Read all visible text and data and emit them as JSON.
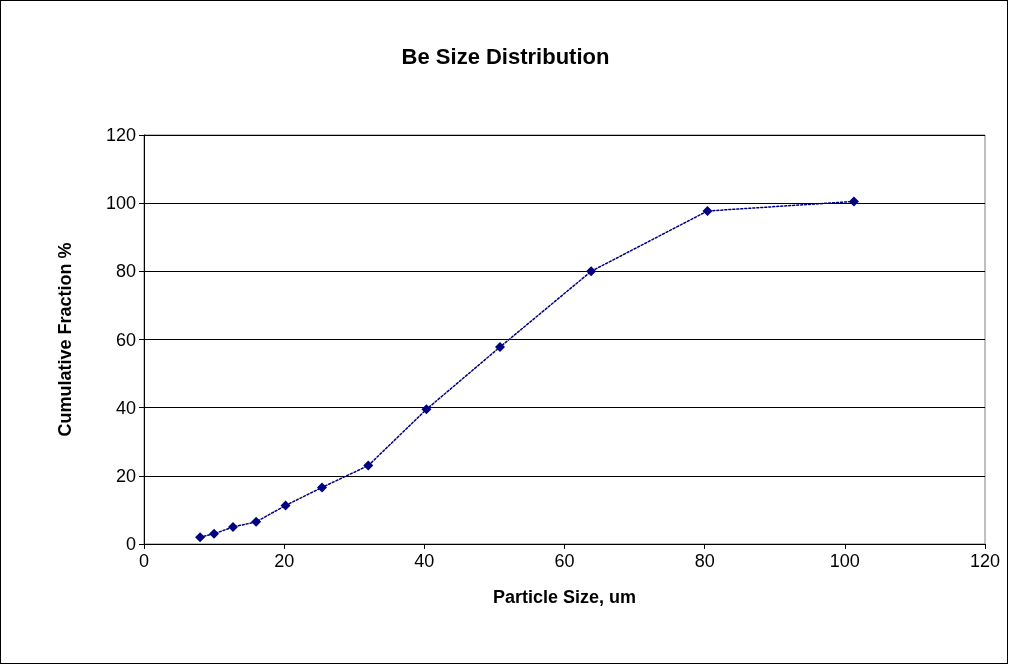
{
  "chart_data": {
    "type": "line",
    "title": "Be Size Distribution",
    "xlabel": "Particle Size, um",
    "ylabel": "Cumulative Fraction %",
    "x": [
      8,
      10,
      12.7,
      16,
      20.2,
      25.4,
      32,
      40.3,
      50.8,
      63.8,
      80.4,
      101.3
    ],
    "series": [
      {
        "color": "#000080",
        "values": [
          2,
          3,
          5,
          6.5,
          11.3,
          16.6,
          23,
          39.5,
          57.8,
          80,
          97.7,
          100.5
        ]
      }
    ],
    "xlim": [
      0,
      120
    ],
    "xticks": [
      0,
      20,
      40,
      60,
      80,
      100,
      120
    ],
    "ylim": [
      0,
      120
    ],
    "yticks": [
      0,
      20,
      40,
      60,
      80,
      100,
      120
    ],
    "grid": "y",
    "marker": "diamond",
    "line_style": "dotted"
  }
}
